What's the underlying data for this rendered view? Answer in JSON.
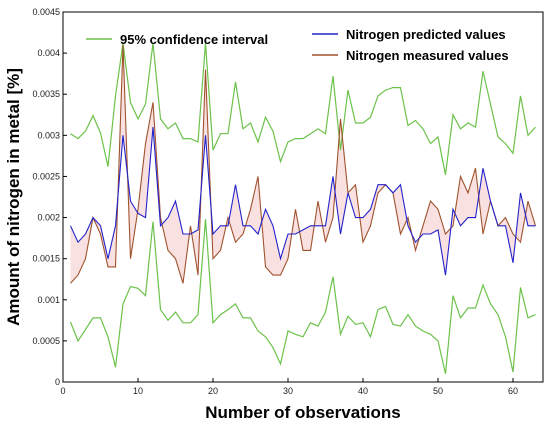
{
  "chart_data": {
    "type": "line",
    "xlabel": "Number of observations",
    "ylabel": "Amount of nitrogen in metal [%]",
    "xlim": [
      0,
      64
    ],
    "ylim": [
      0,
      0.0045
    ],
    "xticks": [
      0,
      10,
      20,
      30,
      40,
      50,
      60
    ],
    "yticks": [
      0,
      0.0005,
      0.001,
      0.0015,
      0.002,
      0.0025,
      0.003,
      0.0035,
      0.004,
      0.0045
    ],
    "xtick_labels": [
      "0",
      "10",
      "20",
      "30",
      "40",
      "50",
      "60"
    ],
    "ytick_labels": [
      "0",
      "0.0005",
      "0.001",
      "0.0015",
      "0.002",
      "0.0025",
      "0.003",
      "0.0035",
      "0.004",
      "0.0045"
    ],
    "grid": false,
    "legend_position": "top",
    "x": [
      1,
      2,
      3,
      4,
      5,
      6,
      7,
      8,
      9,
      10,
      11,
      12,
      13,
      14,
      15,
      16,
      17,
      18,
      19,
      20,
      21,
      22,
      23,
      24,
      25,
      26,
      27,
      28,
      29,
      30,
      31,
      32,
      33,
      34,
      35,
      36,
      37,
      38,
      39,
      40,
      41,
      42,
      43,
      44,
      45,
      46,
      47,
      48,
      49,
      50,
      51,
      52,
      53,
      54,
      55,
      56,
      57,
      58,
      59,
      60,
      61,
      62,
      63
    ],
    "series": [
      {
        "name": "95% confidence interval",
        "color": "#6cc24a",
        "kind": "band",
        "upper": [
          0.00302,
          0.00296,
          0.00305,
          0.00324,
          0.00303,
          0.00262,
          0.00348,
          0.00412,
          0.0034,
          0.0032,
          0.00338,
          0.00412,
          0.0032,
          0.00308,
          0.00315,
          0.00296,
          0.00296,
          0.00292,
          0.00412,
          0.00282,
          0.00302,
          0.00302,
          0.00365,
          0.00308,
          0.00315,
          0.00292,
          0.00322,
          0.00305,
          0.00268,
          0.00292,
          0.00296,
          0.00296,
          0.00302,
          0.00308,
          0.00302,
          0.00372,
          0.00282,
          0.00355,
          0.00315,
          0.00315,
          0.00322,
          0.00348,
          0.00355,
          0.00358,
          0.00358,
          0.00312,
          0.00318,
          0.00308,
          0.0029,
          0.00298,
          0.00252,
          0.00325,
          0.00308,
          0.00315,
          0.0031,
          0.00378,
          0.00338,
          0.00298,
          0.0029,
          0.00278,
          0.00348,
          0.003,
          0.0031
        ],
        "lower": [
          0.00073,
          0.0005,
          0.00064,
          0.00078,
          0.00078,
          0.00055,
          0.00018,
          0.00095,
          0.00116,
          0.00114,
          0.00105,
          0.00195,
          0.00088,
          0.00075,
          0.00085,
          0.00072,
          0.00072,
          0.00082,
          0.00198,
          0.00072,
          0.00082,
          0.00088,
          0.00095,
          0.00078,
          0.00078,
          0.00062,
          0.00055,
          0.00042,
          0.00022,
          0.00062,
          0.00058,
          0.00055,
          0.00072,
          0.00068,
          0.00085,
          0.00128,
          0.00058,
          0.0008,
          0.0007,
          0.00072,
          0.00055,
          0.00088,
          0.00092,
          0.0007,
          0.00068,
          0.00082,
          0.00068,
          0.00062,
          0.00058,
          0.0005,
          0.0001,
          0.00105,
          0.00078,
          0.0009,
          0.0009,
          0.00118,
          0.00095,
          0.00082,
          0.00055,
          0.00012,
          0.00115,
          0.00078,
          0.00082
        ]
      },
      {
        "name": "Nitrogen predicted values",
        "color": "#2222cc",
        "values": [
          0.0019,
          0.0017,
          0.0018,
          0.002,
          0.0019,
          0.0015,
          0.0019,
          0.003,
          0.0022,
          0.00205,
          0.002,
          0.0031,
          0.0019,
          0.002,
          0.0022,
          0.0018,
          0.0018,
          0.00185,
          0.003,
          0.0018,
          0.0019,
          0.0019,
          0.0024,
          0.0019,
          0.0019,
          0.0018,
          0.0021,
          0.0019,
          0.0015,
          0.0018,
          0.0018,
          0.00185,
          0.0019,
          0.0019,
          0.0019,
          0.0025,
          0.0018,
          0.0023,
          0.002,
          0.002,
          0.0021,
          0.0024,
          0.0024,
          0.0023,
          0.0024,
          0.0019,
          0.0017,
          0.0018,
          0.0018,
          0.00185,
          0.0013,
          0.0021,
          0.0019,
          0.002,
          0.002,
          0.0026,
          0.0022,
          0.0019,
          0.0019,
          0.00145,
          0.0023,
          0.0019,
          0.0019
        ]
      },
      {
        "name": "Nitrogen measured values",
        "color": "#a0522d",
        "values": [
          0.0012,
          0.0013,
          0.0015,
          0.002,
          0.0018,
          0.0014,
          0.0014,
          0.0041,
          0.0015,
          0.0021,
          0.0029,
          0.0034,
          0.002,
          0.0016,
          0.0015,
          0.0012,
          0.0019,
          0.0013,
          0.0038,
          0.0015,
          0.0016,
          0.002,
          0.0017,
          0.0018,
          0.0021,
          0.0025,
          0.0014,
          0.0013,
          0.0013,
          0.0015,
          0.0021,
          0.0016,
          0.0016,
          0.0022,
          0.0017,
          0.002,
          0.0032,
          0.0023,
          0.0024,
          0.0017,
          0.0019,
          0.0023,
          0.0024,
          0.0023,
          0.0018,
          0.002,
          0.0016,
          0.0019,
          0.0022,
          0.0021,
          0.0018,
          0.0019,
          0.0025,
          0.0023,
          0.0026,
          0.0018,
          0.0022,
          0.0019,
          0.002,
          0.0018,
          0.0017,
          0.0022,
          0.0019
        ]
      }
    ]
  }
}
